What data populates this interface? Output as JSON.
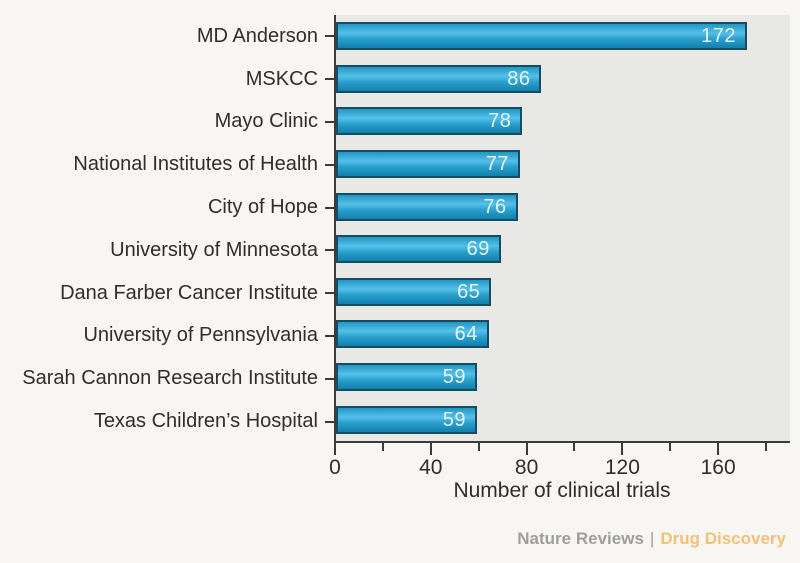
{
  "chart_data": {
    "type": "bar",
    "orientation": "horizontal",
    "title": "",
    "categories": [
      "MD Anderson",
      "MSKCC",
      "Mayo Clinic",
      "National Institutes of Health",
      "City of Hope",
      "University of Minnesota",
      "Dana Farber Cancer Institute",
      "University of Pennsylvania",
      "Sarah Cannon Research Institute",
      "Texas Children’s Hospital"
    ],
    "values": [
      172,
      86,
      78,
      77,
      76,
      69,
      65,
      64,
      59,
      59
    ],
    "xlabel": "Number of clinical trials",
    "xlim": [
      0,
      190
    ],
    "xticks_major": [
      0,
      40,
      80,
      120,
      160
    ],
    "xticks_minor": [
      20,
      60,
      100,
      140,
      180
    ],
    "bar_value_labels_shown": true,
    "legend": "none",
    "grid": false
  },
  "footer": {
    "journal": "Nature Reviews",
    "separator": "|",
    "publication": "Drug Discovery"
  },
  "colors": {
    "page_bg": "#f8f6f3",
    "plot_bg": "#e8e8e4",
    "bar_border": "#174a63",
    "bar_top": "#2196c5",
    "bar_mid": "#55c0e8",
    "bar_low": "#2aa0cd",
    "bar_bottom": "#1180ad",
    "axis": "#3a3a3a",
    "text": "#2e2e2e",
    "value_text": "#e6f5f9",
    "credit_gray": "#9e9e9e",
    "credit_accent": "#f0c178"
  }
}
